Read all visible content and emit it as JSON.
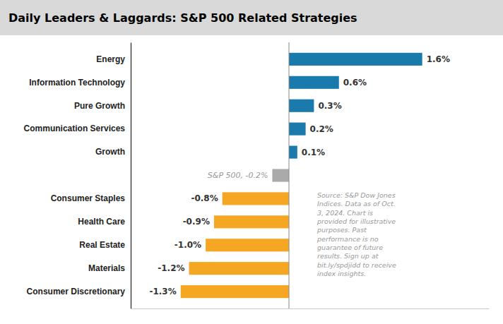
{
  "chart_data": {
    "type": "bar",
    "orientation": "horizontal",
    "title": "Daily Leaders & Laggards: S&P 500 Related Strategies",
    "categories": [
      "Energy",
      "Information Technology",
      "Pure Growth",
      "Communication Services",
      "Growth",
      null,
      "Consumer Staples",
      "Health Care",
      "Real Estate",
      "Materials",
      "Consumer Discretionary"
    ],
    "values": [
      1.6,
      0.6,
      0.3,
      0.2,
      0.1,
      -0.2,
      -0.8,
      -0.9,
      -1.0,
      -1.2,
      -1.3
    ],
    "value_labels": [
      "1.6%",
      "0.6%",
      "0.3%",
      "0.2%",
      "0.1%",
      "S&P 500, -0.2%",
      "-0.8%",
      "-0.9%",
      "-1.0%",
      "-1.2%",
      "-1.3%"
    ],
    "colors": [
      "#1a7aab",
      "#1a7aab",
      "#1a7aab",
      "#1a7aab",
      "#1a7aab",
      "#aaaaaa",
      "#f5a623",
      "#f5a623",
      "#f5a623",
      "#f5a623",
      "#f5a623"
    ],
    "xlim": [
      -1.9,
      2.4
    ],
    "data_labels": true,
    "tick_labels": "y",
    "grid": false,
    "annotations": [
      "Source: S&P Dow Jones\nIndices.  Data as of Oct.\n3, 2024. Chart is\nprovided for illustrative\npurposes. Past\nperformance is no\nguarantee of future\nresults. Sign up at\nbit.ly/spdjidd to receive\nindex insights."
    ]
  }
}
